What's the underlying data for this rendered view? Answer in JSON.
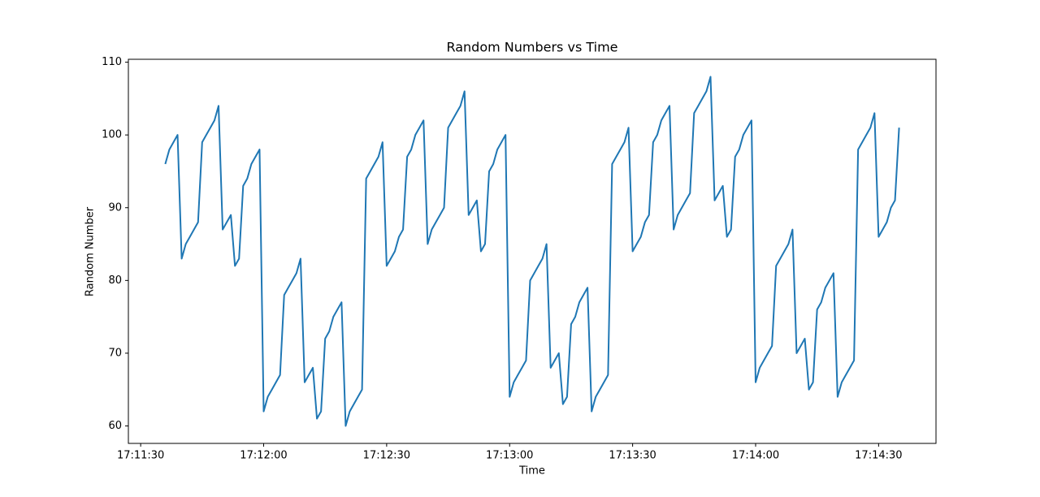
{
  "chart_data": {
    "type": "line",
    "title": "Random Numbers vs Time",
    "xlabel": "Time",
    "ylabel": "Random Number",
    "color": "#1f77b4",
    "x": [
      "17:11:36",
      "17:11:37",
      "17:11:38",
      "17:11:39",
      "17:11:40",
      "17:11:41",
      "17:11:42",
      "17:11:43",
      "17:11:44",
      "17:11:45",
      "17:11:46",
      "17:11:47",
      "17:11:48",
      "17:11:49",
      "17:11:50",
      "17:11:51",
      "17:11:52",
      "17:11:53",
      "17:11:54",
      "17:11:55",
      "17:11:56",
      "17:11:57",
      "17:11:58",
      "17:11:59",
      "17:12:00",
      "17:12:01",
      "17:12:02",
      "17:12:03",
      "17:12:04",
      "17:12:05",
      "17:12:06",
      "17:12:07",
      "17:12:08",
      "17:12:09",
      "17:12:10",
      "17:12:11",
      "17:12:12",
      "17:12:13",
      "17:12:14",
      "17:12:15",
      "17:12:16",
      "17:12:17",
      "17:12:18",
      "17:12:19",
      "17:12:20",
      "17:12:21",
      "17:12:22",
      "17:12:23",
      "17:12:24",
      "17:12:25",
      "17:12:26",
      "17:12:27",
      "17:12:28",
      "17:12:29",
      "17:12:30",
      "17:12:31",
      "17:12:32",
      "17:12:33",
      "17:12:34",
      "17:12:35",
      "17:12:36",
      "17:12:37",
      "17:12:38",
      "17:12:39",
      "17:12:40",
      "17:12:41",
      "17:12:42",
      "17:12:43",
      "17:12:44",
      "17:12:45",
      "17:12:46",
      "17:12:47",
      "17:12:48",
      "17:12:49",
      "17:12:50",
      "17:12:51",
      "17:12:52",
      "17:12:53",
      "17:12:54",
      "17:12:55",
      "17:12:56",
      "17:12:57",
      "17:12:58",
      "17:12:59",
      "17:13:00",
      "17:13:01",
      "17:13:02",
      "17:13:03",
      "17:13:04",
      "17:13:05",
      "17:13:06",
      "17:13:07",
      "17:13:08",
      "17:13:09",
      "17:13:10",
      "17:13:11",
      "17:13:12",
      "17:13:13",
      "17:13:14",
      "17:13:15",
      "17:13:16",
      "17:13:17",
      "17:13:18",
      "17:13:19",
      "17:13:20",
      "17:13:21",
      "17:13:22",
      "17:13:23",
      "17:13:24",
      "17:13:25",
      "17:13:26",
      "17:13:27",
      "17:13:28",
      "17:13:29",
      "17:13:30",
      "17:13:31",
      "17:13:32",
      "17:13:33",
      "17:13:34",
      "17:13:35",
      "17:13:36",
      "17:13:37",
      "17:13:38",
      "17:13:39",
      "17:13:40",
      "17:13:41",
      "17:13:42",
      "17:13:43",
      "17:13:44",
      "17:13:45",
      "17:13:46",
      "17:13:47",
      "17:13:48",
      "17:13:49",
      "17:13:50",
      "17:13:51",
      "17:13:52",
      "17:13:53",
      "17:13:54",
      "17:13:55",
      "17:13:56",
      "17:13:57",
      "17:13:58",
      "17:13:59",
      "17:14:00",
      "17:14:01",
      "17:14:02",
      "17:14:03",
      "17:14:04",
      "17:14:05",
      "17:14:06",
      "17:14:07",
      "17:14:08",
      "17:14:09",
      "17:14:10",
      "17:14:11",
      "17:14:12",
      "17:14:13",
      "17:14:14",
      "17:14:15",
      "17:14:16",
      "17:14:17",
      "17:14:18",
      "17:14:19",
      "17:14:20",
      "17:14:21",
      "17:14:22",
      "17:14:23",
      "17:14:24",
      "17:14:25",
      "17:14:26",
      "17:14:27",
      "17:14:28",
      "17:14:29",
      "17:14:30",
      "17:14:31",
      "17:14:32",
      "17:14:33",
      "17:14:34",
      "17:14:35"
    ],
    "values": [
      96,
      98,
      99,
      100,
      83,
      85,
      86,
      87,
      88,
      99,
      100,
      101,
      102,
      104,
      87,
      88,
      89,
      82,
      83,
      93,
      94,
      96,
      97,
      98,
      62,
      64,
      65,
      66,
      67,
      78,
      79,
      80,
      81,
      83,
      66,
      67,
      68,
      61,
      62,
      72,
      73,
      75,
      76,
      77,
      60,
      62,
      63,
      64,
      65,
      94,
      95,
      96,
      97,
      99,
      82,
      83,
      84,
      86,
      87,
      97,
      98,
      100,
      101,
      102,
      85,
      87,
      88,
      89,
      90,
      101,
      102,
      103,
      104,
      106,
      89,
      90,
      91,
      84,
      85,
      95,
      96,
      98,
      99,
      100,
      64,
      66,
      67,
      68,
      69,
      80,
      81,
      82,
      83,
      85,
      68,
      69,
      70,
      63,
      64,
      74,
      75,
      77,
      78,
      79,
      62,
      64,
      65,
      66,
      67,
      96,
      97,
      98,
      99,
      101,
      84,
      85,
      86,
      88,
      89,
      99,
      100,
      102,
      103,
      104,
      87,
      89,
      90,
      91,
      92,
      103,
      104,
      105,
      106,
      108,
      91,
      92,
      93,
      86,
      87,
      97,
      98,
      100,
      101,
      102,
      66,
      68,
      69,
      70,
      71,
      82,
      83,
      84,
      85,
      87,
      70,
      71,
      72,
      65,
      66,
      76,
      77,
      79,
      80,
      81,
      64,
      66,
      67,
      68,
      69,
      98,
      99,
      100,
      101,
      103,
      86,
      87,
      88,
      90,
      91,
      101
    ],
    "xlim": [
      "17:11:27",
      "17:14:44"
    ],
    "xticks": [
      "17:11:30",
      "17:12:00",
      "17:12:30",
      "17:13:00",
      "17:13:30",
      "17:14:00",
      "17:14:30"
    ],
    "ylim": [
      57.6,
      110.4
    ],
    "yticks": [
      60,
      70,
      80,
      90,
      100,
      110
    ]
  }
}
